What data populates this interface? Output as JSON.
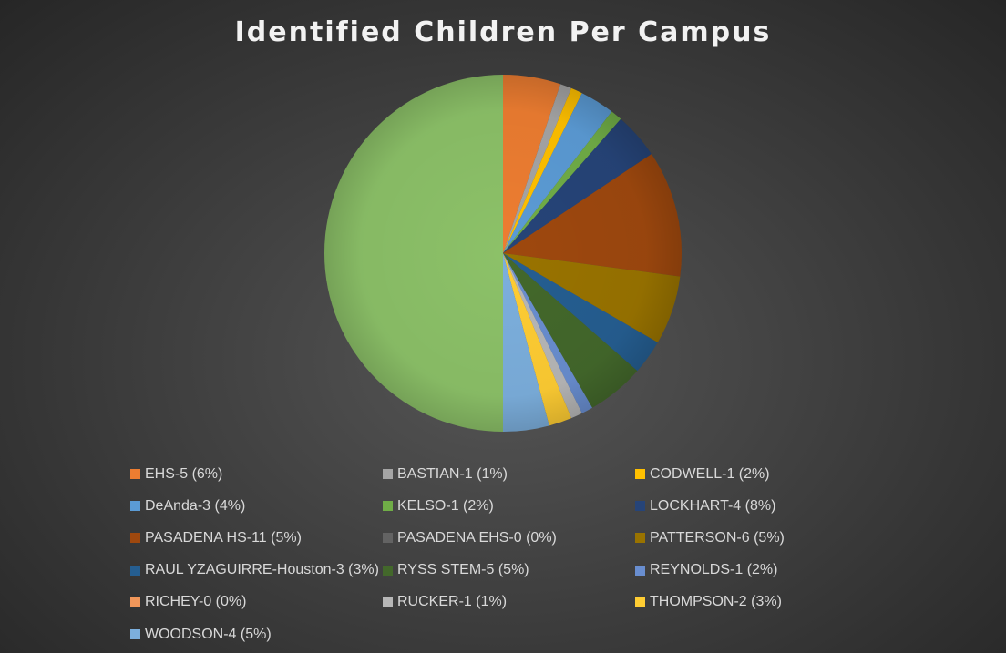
{
  "chart_data": {
    "type": "pie",
    "title": "Identified Children Per Campus",
    "legend_position": "bottom",
    "slices": [
      {
        "label": "EHS-5 (6%)",
        "value": 5,
        "color": "#ed7d31"
      },
      {
        "label": "BASTIAN-1 (1%)",
        "value": 1,
        "color": "#a5a5a5"
      },
      {
        "label": "CODWELL-1 (2%)",
        "value": 1,
        "color": "#ffc000"
      },
      {
        "label": "DeAnda-3 (4%)",
        "value": 3,
        "color": "#5b9bd5"
      },
      {
        "label": "KELSO-1 (2%)",
        "value": 1,
        "color": "#70ad47"
      },
      {
        "label": "LOCKHART-4 (8%)",
        "value": 4,
        "color": "#264478"
      },
      {
        "label": "PASADENA HS-11 (5%)",
        "value": 11,
        "color": "#9e480e"
      },
      {
        "label": "PASADENA EHS-0 (0%)",
        "value": 0,
        "color": "#636363"
      },
      {
        "label": "PATTERSON-6 (5%)",
        "value": 6,
        "color": "#997300"
      },
      {
        "label": "RAUL YZAGUIRRE-Houston-3 (3%)",
        "value": 3,
        "color": "#255e91"
      },
      {
        "label": "RYSS STEM-5 (5%)",
        "value": 5,
        "color": "#43682b"
      },
      {
        "label": "REYNOLDS-1 (2%)",
        "value": 1,
        "color": "#698ed0"
      },
      {
        "label": "RICHEY-0 (0%)",
        "value": 0,
        "color": "#f1975a"
      },
      {
        "label": "RUCKER-1 (1%)",
        "value": 1,
        "color": "#b7b7b7"
      },
      {
        "label": "THOMPSON-2 (3%)",
        "value": 2,
        "color": "#ffcd33"
      },
      {
        "label": "WOODSON-4 (5%)",
        "value": 4,
        "color": "#7cafdd"
      },
      {
        "label": "",
        "value": 48,
        "color": "#8cc168"
      }
    ]
  }
}
